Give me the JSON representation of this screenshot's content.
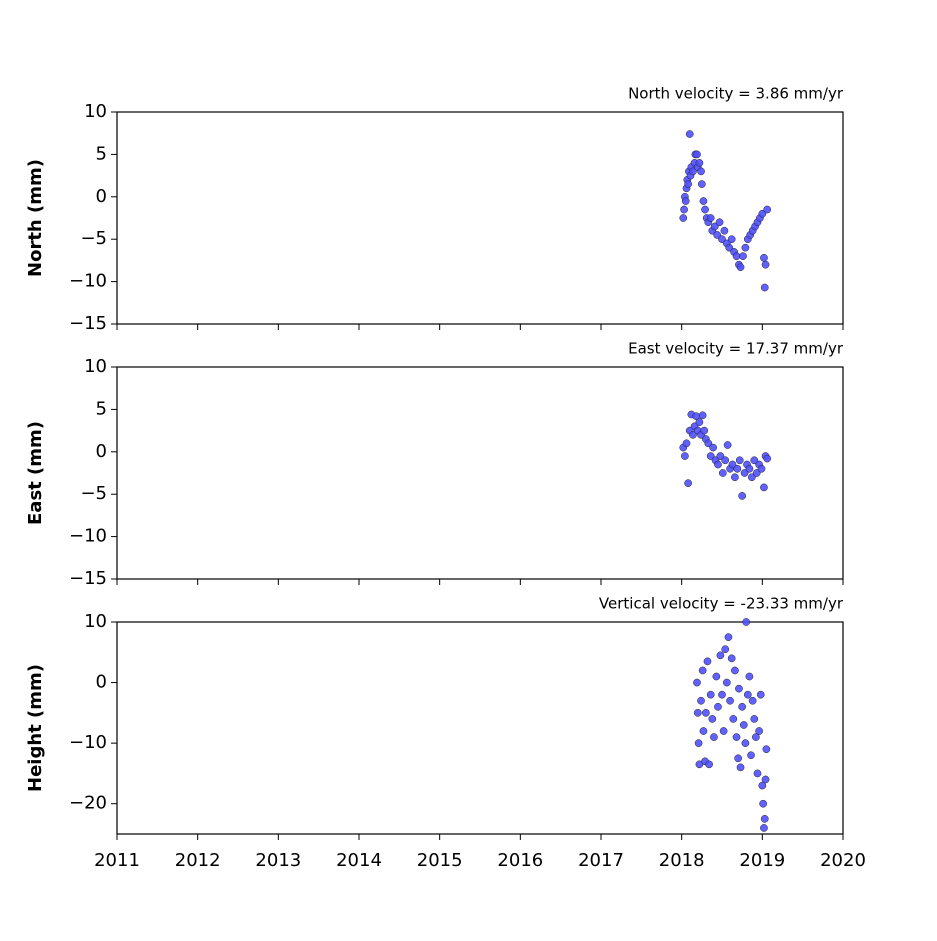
{
  "chart_data": [
    {
      "type": "scatter",
      "title": "North velocity = 3.86 mm/yr",
      "y_label": "North (mm)",
      "color": "#5050ff",
      "xlim": [
        2011,
        2020
      ],
      "xticks": [
        2011,
        2012,
        2013,
        2014,
        2015,
        2016,
        2017,
        2018,
        2019,
        2020
      ],
      "show_xtick_labels": false,
      "ylim": [
        -15,
        10
      ],
      "yticks": [
        {
          "value": -15,
          "label": "−15"
        },
        {
          "value": -10,
          "label": "−10"
        },
        {
          "value": -5,
          "label": "−5"
        },
        0,
        5,
        10
      ],
      "x": [
        2018.02,
        2018.03,
        2018.04,
        2018.05,
        2018.06,
        2018.07,
        2018.08,
        2018.09,
        2018.1,
        2018.11,
        2018.12,
        2018.14,
        2018.16,
        2018.17,
        2018.19,
        2018.2,
        2018.22,
        2018.24,
        2018.25,
        2018.27,
        2018.29,
        2018.31,
        2018.33,
        2018.36,
        2018.38,
        2018.41,
        2018.44,
        2018.47,
        2018.5,
        2018.53,
        2018.56,
        2018.59,
        2018.62,
        2018.65,
        2018.68,
        2018.71,
        2018.73,
        2018.76,
        2018.79,
        2018.82,
        2018.85,
        2018.88,
        2018.91,
        2018.94,
        2018.97,
        2019.0,
        2019.02,
        2019.03,
        2019.04,
        2019.06
      ],
      "values": [
        -2.5,
        -1.5,
        0,
        -0.5,
        1,
        2,
        1.5,
        3,
        7.4,
        2.5,
        3.5,
        3,
        4,
        5,
        5,
        3.5,
        4,
        3,
        1.5,
        -0.5,
        -1.5,
        -2.5,
        -3,
        -2.5,
        -4,
        -3.5,
        -4.5,
        -3,
        -5,
        -4,
        -5.5,
        -6,
        -5,
        -6.5,
        -7,
        -8,
        -8.3,
        -7,
        -6,
        -5,
        -4.5,
        -4,
        -3.5,
        -3,
        -2.5,
        -2,
        -7.2,
        -10.7,
        -8,
        -1.5
      ]
    },
    {
      "type": "scatter",
      "title": "East velocity = 17.37 mm/yr",
      "y_label": "East (mm)",
      "color": "#5050ff",
      "xlim": [
        2011,
        2020
      ],
      "xticks": [
        2011,
        2012,
        2013,
        2014,
        2015,
        2016,
        2017,
        2018,
        2019,
        2020
      ],
      "show_xtick_labels": false,
      "ylim": [
        -15,
        10
      ],
      "yticks": [
        {
          "value": -15,
          "label": "−15"
        },
        {
          "value": -10,
          "label": "−10"
        },
        {
          "value": -5,
          "label": "−5"
        },
        0,
        5,
        10
      ],
      "x": [
        2018.02,
        2018.04,
        2018.06,
        2018.08,
        2018.1,
        2018.12,
        2018.14,
        2018.16,
        2018.18,
        2018.2,
        2018.22,
        2018.24,
        2018.26,
        2018.28,
        2018.3,
        2018.33,
        2018.36,
        2018.39,
        2018.42,
        2018.45,
        2018.48,
        2018.51,
        2018.54,
        2018.57,
        2018.6,
        2018.63,
        2018.66,
        2018.69,
        2018.72,
        2018.75,
        2018.78,
        2018.81,
        2018.84,
        2018.87,
        2018.9,
        2018.93,
        2018.96,
        2018.99,
        2019.02,
        2019.04,
        2019.06
      ],
      "values": [
        0.5,
        -0.5,
        1,
        -3.7,
        2.5,
        4.4,
        2,
        3,
        4.2,
        2.5,
        3.5,
        2,
        4.3,
        2.5,
        1.5,
        1,
        -0.5,
        0.5,
        -1,
        -1.5,
        -0.5,
        -2.5,
        -1,
        0.8,
        -2,
        -1.5,
        -3,
        -2,
        -1,
        -5.2,
        -2.5,
        -1.5,
        -2,
        -3,
        -1,
        -2.5,
        -1.5,
        -2,
        -4.2,
        -0.5,
        -0.8
      ]
    },
    {
      "type": "scatter",
      "title": "Vertical velocity = -23.33 mm/yr",
      "y_label": "Height (mm)",
      "color": "#5050ff",
      "xlim": [
        2011,
        2020
      ],
      "xticks": [
        2011,
        2012,
        2013,
        2014,
        2015,
        2016,
        2017,
        2018,
        2019,
        2020
      ],
      "show_xtick_labels": true,
      "ylim": [
        -25,
        10
      ],
      "yticks": [
        {
          "value": -20,
          "label": "−20"
        },
        {
          "value": -10,
          "label": "−10"
        },
        0,
        10
      ],
      "x": [
        2018.19,
        2018.2,
        2018.21,
        2018.22,
        2018.24,
        2018.26,
        2018.27,
        2018.29,
        2018.3,
        2018.32,
        2018.34,
        2018.36,
        2018.38,
        2018.4,
        2018.43,
        2018.45,
        2018.48,
        2018.5,
        2018.52,
        2018.54,
        2018.56,
        2018.58,
        2018.6,
        2018.62,
        2018.64,
        2018.66,
        2018.68,
        2018.7,
        2018.71,
        2018.73,
        2018.75,
        2018.77,
        2018.79,
        2018.8,
        2018.82,
        2018.84,
        2018.86,
        2018.88,
        2018.9,
        2018.92,
        2018.94,
        2018.96,
        2018.98,
        2019.0,
        2019.01,
        2019.02,
        2019.03,
        2019.04,
        2019.05
      ],
      "values": [
        0,
        -5,
        -10,
        -13.5,
        -3,
        2,
        -8,
        -13,
        -5,
        3.5,
        -13.5,
        -2,
        -6,
        -9,
        1,
        -4,
        4.5,
        -2,
        -8,
        5.5,
        0,
        7.5,
        -3,
        4,
        -6,
        2,
        -9,
        -12.5,
        -1,
        -14,
        -4,
        -7,
        -10,
        10,
        -2,
        1,
        -12,
        -3,
        -6,
        -9,
        -15,
        -8,
        -2,
        -17,
        -20,
        -24,
        -22.5,
        -16,
        -11
      ]
    }
  ]
}
